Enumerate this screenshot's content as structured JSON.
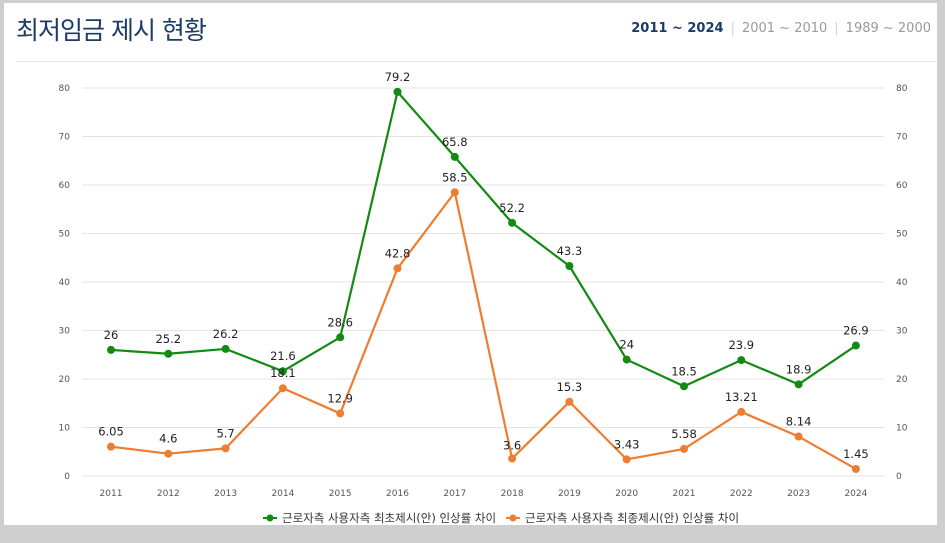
{
  "header": {
    "title": "최저임금 제시 현황",
    "tabs": [
      {
        "label": "2011 ~ 2024",
        "active": true
      },
      {
        "label": "2001 ~ 2010",
        "active": false
      },
      {
        "label": "1989 ~ 2000",
        "active": false
      }
    ]
  },
  "chart_data": {
    "type": "line",
    "categories": [
      "2011",
      "2012",
      "2013",
      "2014",
      "2015",
      "2016",
      "2017",
      "2018",
      "2019",
      "2020",
      "2021",
      "2022",
      "2023",
      "2024"
    ],
    "ylim": [
      0,
      80
    ],
    "yticks": [
      0,
      10,
      20,
      30,
      40,
      50,
      60,
      70,
      80
    ],
    "grid": true,
    "legend_position": "bottom",
    "series": [
      {
        "name": "근로자측 사용자측 최초제시(안) 인상률 차이",
        "color": "#138a13",
        "values": [
          26,
          25.2,
          26.2,
          21.6,
          28.6,
          79.2,
          65.8,
          52.2,
          43.3,
          24,
          18.5,
          23.9,
          18.9,
          26.9
        ],
        "labels": [
          "26",
          "25.2",
          "26.2",
          "21.6",
          "28.6",
          "79.2",
          "65.8",
          "52.2",
          "43.3",
          "24",
          "18.5",
          "23.9",
          "18.9",
          "26.9"
        ]
      },
      {
        "name": "근로자측 사용자측 최종제시(안) 인상률 차이",
        "color": "#ed7d31",
        "values": [
          6.05,
          4.6,
          5.7,
          18.1,
          12.9,
          42.8,
          58.5,
          3.6,
          15.3,
          3.43,
          5.58,
          13.21,
          8.14,
          1.45
        ],
        "labels": [
          "6.05",
          "4.6",
          "5.7",
          "18.1",
          "12.9",
          "42.8",
          "58.5",
          "3.6",
          "15.3",
          "3.43",
          "5.58",
          "13.21",
          "8.14",
          "1.45"
        ]
      }
    ]
  }
}
